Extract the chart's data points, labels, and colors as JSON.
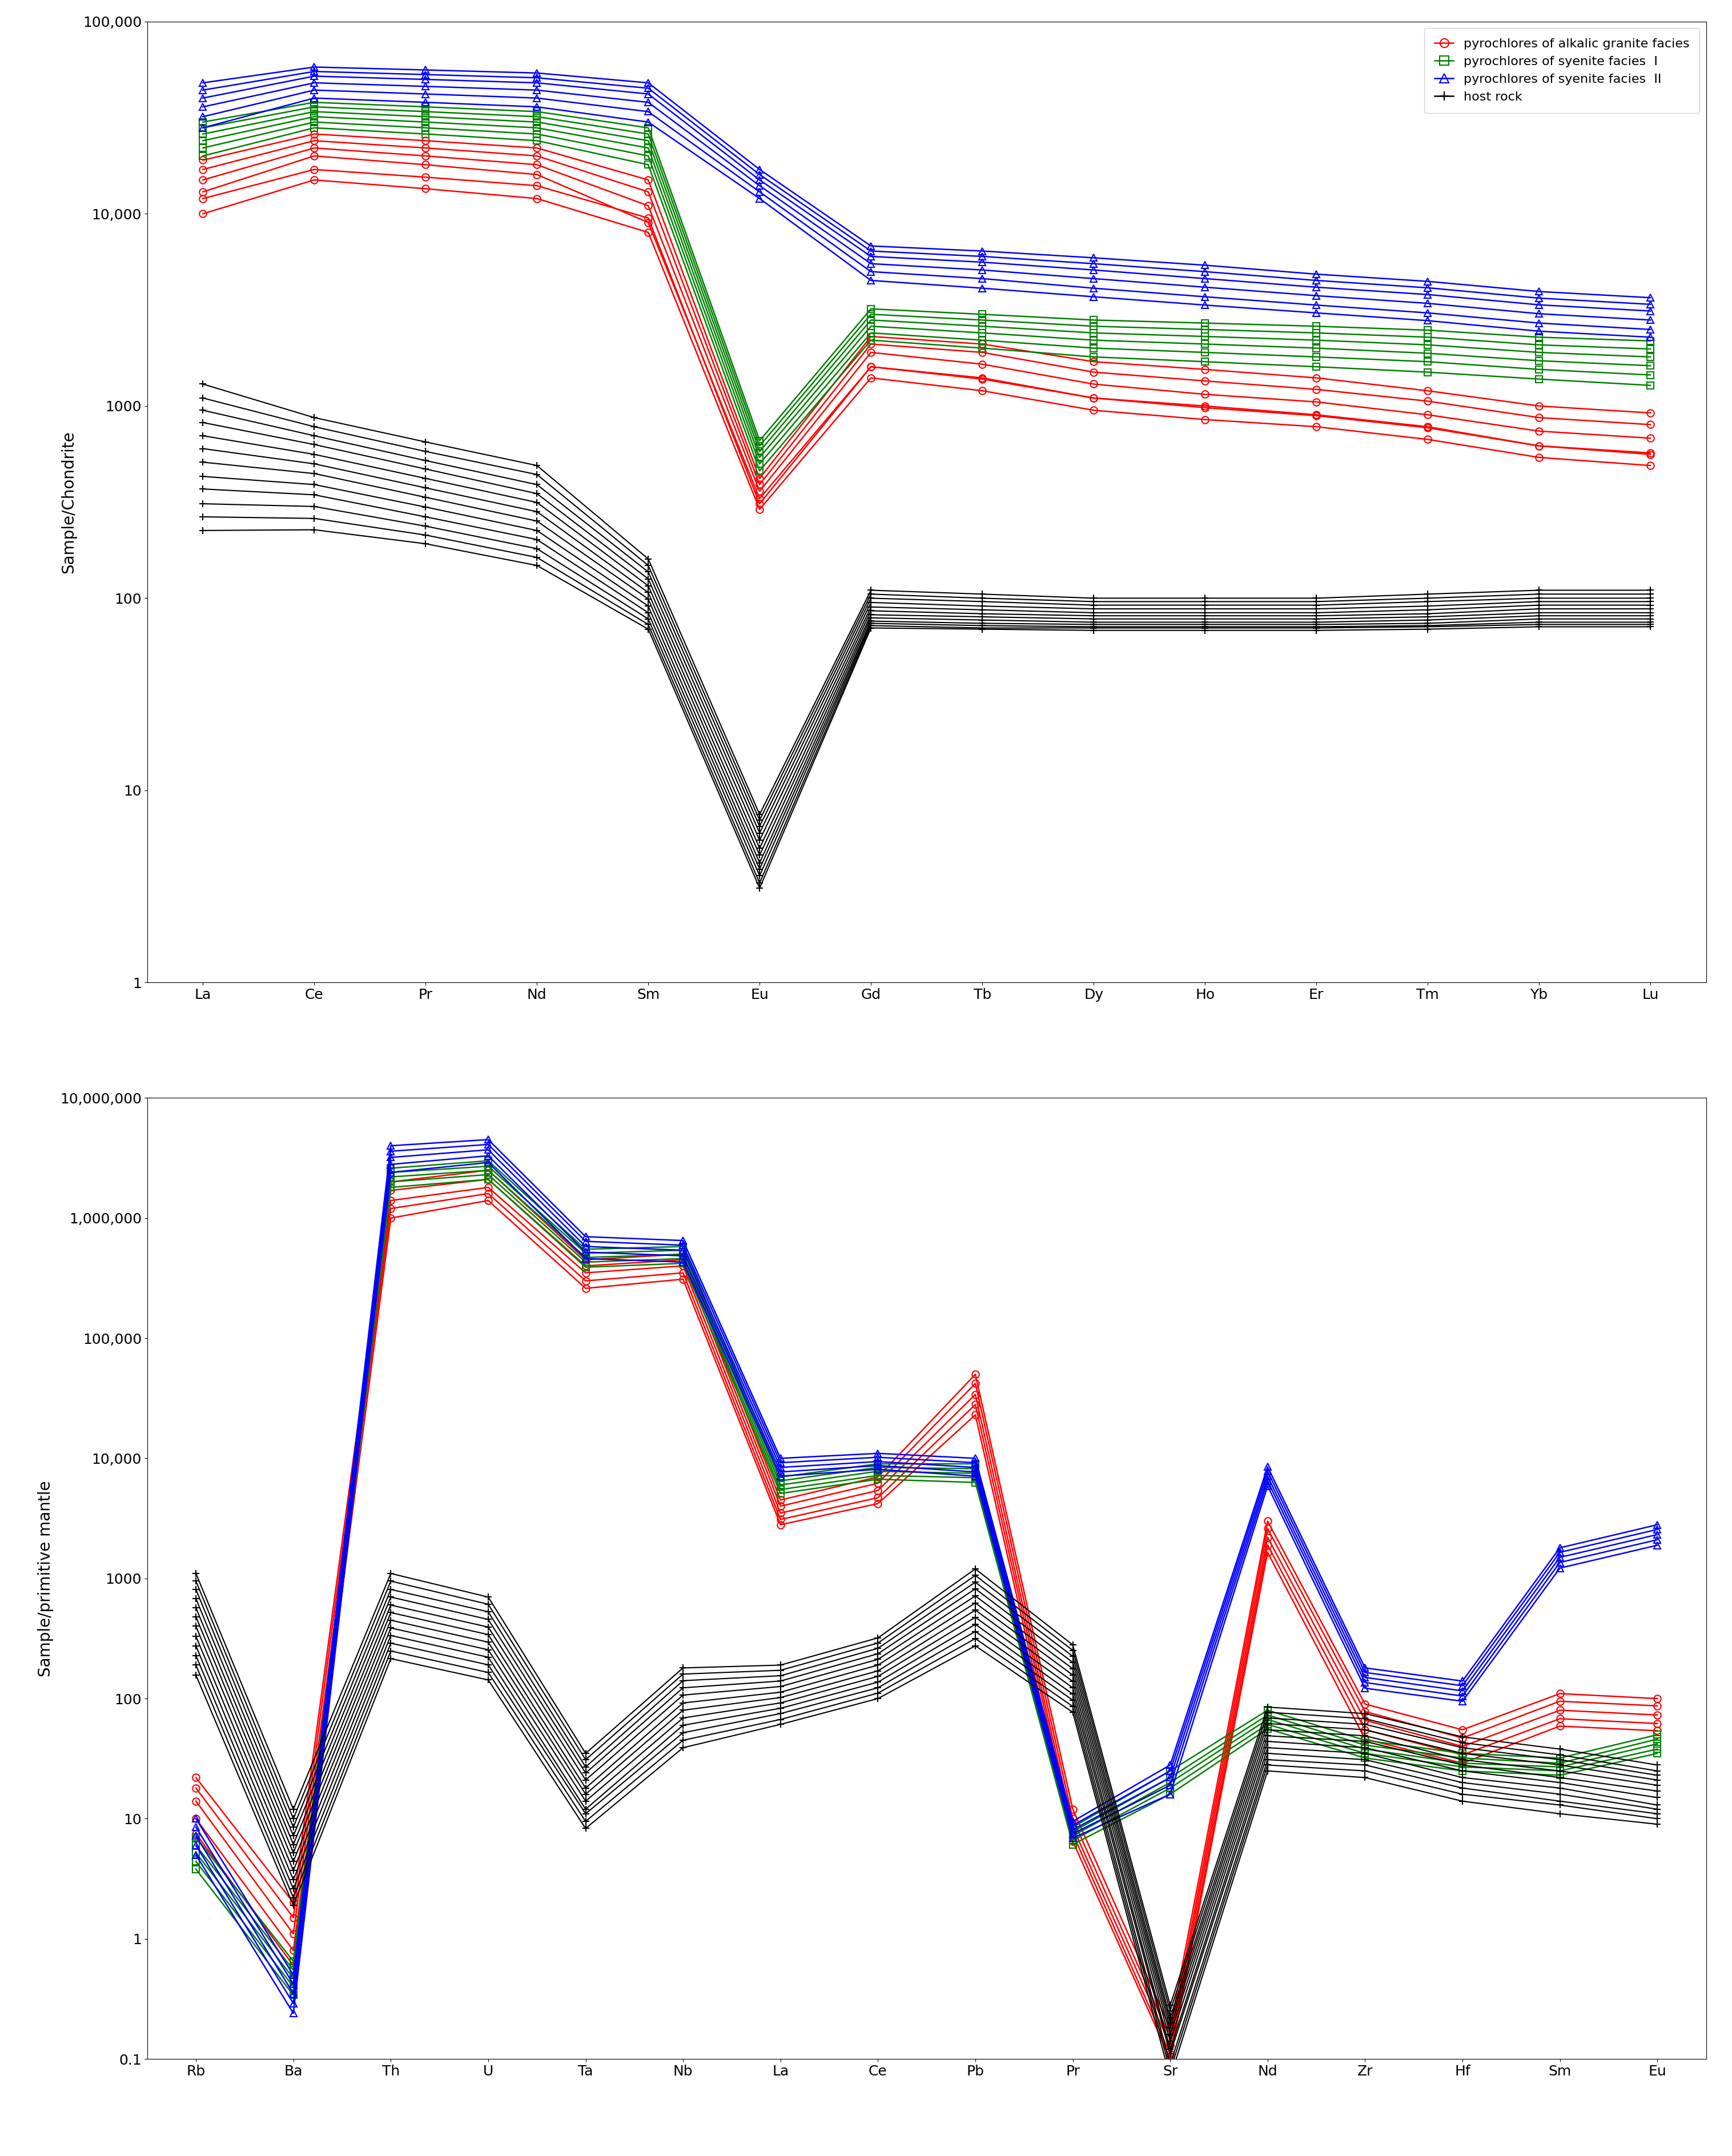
{
  "chart1": {
    "elements": [
      "La",
      "Ce",
      "Pr",
      "Nd",
      "Sm",
      "Eu",
      "Gd",
      "Tb",
      "Dy",
      "Ho",
      "Er",
      "Tm",
      "Yb",
      "Lu"
    ],
    "ylabel": "Sample/Chondrite",
    "ylim_min": 1,
    "ylim_max": 100000,
    "red_series": [
      [
        13000,
        20000,
        18000,
        16000,
        9000,
        330,
        1600,
        1400,
        1100,
        1000,
        900,
        780,
        620,
        560
      ],
      [
        15000,
        22000,
        20000,
        18000,
        11000,
        360,
        1900,
        1650,
        1300,
        1150,
        1050,
        900,
        740,
        680
      ],
      [
        17000,
        24000,
        22000,
        20000,
        13000,
        390,
        2100,
        1900,
        1500,
        1350,
        1220,
        1060,
        870,
        800
      ],
      [
        19000,
        26000,
        24000,
        22000,
        15000,
        420,
        2300,
        2100,
        1700,
        1550,
        1400,
        1200,
        1000,
        920
      ],
      [
        10000,
        15000,
        13500,
        12000,
        8000,
        290,
        1400,
        1200,
        950,
        850,
        780,
        670,
        540,
        490
      ],
      [
        12000,
        17000,
        15500,
        14000,
        9500,
        310,
        1600,
        1380,
        1100,
        980,
        890,
        770,
        620,
        570
      ]
    ],
    "green_series": [
      [
        22000,
        30000,
        28000,
        26000,
        20000,
        500,
        2400,
        2200,
        2000,
        1900,
        1800,
        1700,
        1550,
        1450
      ],
      [
        24000,
        32000,
        30000,
        28000,
        22000,
        540,
        2600,
        2400,
        2200,
        2100,
        2000,
        1880,
        1720,
        1620
      ],
      [
        26000,
        34000,
        32000,
        30000,
        24000,
        580,
        2800,
        2600,
        2400,
        2300,
        2200,
        2080,
        1900,
        1800
      ],
      [
        28000,
        36000,
        34000,
        32000,
        26000,
        620,
        3000,
        2800,
        2600,
        2500,
        2400,
        2280,
        2080,
        1980
      ],
      [
        20000,
        28000,
        26000,
        24000,
        18000,
        460,
        2200,
        2000,
        1800,
        1700,
        1600,
        1500,
        1380,
        1280
      ],
      [
        30000,
        38000,
        36000,
        34000,
        28000,
        660,
        3200,
        3000,
        2800,
        2700,
        2600,
        2480,
        2280,
        2180
      ]
    ],
    "blue_series": [
      [
        28000,
        40000,
        38000,
        36000,
        30000,
        12000,
        4500,
        4100,
        3700,
        3350,
        3050,
        2780,
        2450,
        2280
      ],
      [
        32000,
        44000,
        42000,
        40000,
        34000,
        13000,
        5000,
        4600,
        4100,
        3700,
        3350,
        3050,
        2700,
        2500
      ],
      [
        36000,
        48000,
        46000,
        44000,
        38000,
        14000,
        5500,
        5100,
        4600,
        4150,
        3750,
        3420,
        3020,
        2800
      ],
      [
        40000,
        52000,
        50000,
        48000,
        42000,
        15000,
        6000,
        5600,
        5100,
        4600,
        4150,
        3800,
        3360,
        3120
      ],
      [
        44000,
        55000,
        53000,
        51000,
        45000,
        16000,
        6400,
        6000,
        5500,
        5000,
        4500,
        4120,
        3640,
        3380
      ],
      [
        48000,
        58000,
        56000,
        54000,
        48000,
        17000,
        6800,
        6400,
        5900,
        5400,
        4850,
        4450,
        3940,
        3660
      ]
    ],
    "black_series": [
      [
        1300,
        870,
        650,
        490,
        160,
        7.5,
        110,
        105,
        100,
        100,
        100,
        105,
        110,
        110
      ],
      [
        1100,
        780,
        580,
        440,
        148,
        7.0,
        105,
        100,
        96,
        96,
        96,
        100,
        105,
        105
      ],
      [
        950,
        700,
        520,
        390,
        137,
        6.5,
        100,
        96,
        92,
        92,
        92,
        96,
        100,
        100
      ],
      [
        820,
        630,
        470,
        350,
        126,
        6.0,
        95,
        91,
        88,
        88,
        88,
        91,
        96,
        96
      ],
      [
        700,
        560,
        420,
        315,
        116,
        5.5,
        90,
        87,
        84,
        84,
        84,
        87,
        92,
        92
      ],
      [
        600,
        500,
        375,
        282,
        107,
        5.0,
        86,
        83,
        81,
        81,
        81,
        83,
        88,
        88
      ],
      [
        510,
        445,
        335,
        252,
        99,
        4.6,
        82,
        80,
        78,
        78,
        78,
        80,
        84,
        84
      ],
      [
        430,
        390,
        298,
        225,
        91,
        4.2,
        79,
        77,
        75,
        75,
        75,
        77,
        81,
        81
      ],
      [
        370,
        345,
        265,
        202,
        84,
        3.9,
        76,
        74,
        73,
        73,
        73,
        74,
        78,
        78
      ],
      [
        310,
        300,
        237,
        181,
        78,
        3.6,
        74,
        72,
        71,
        71,
        71,
        72,
        75,
        75
      ],
      [
        265,
        260,
        213,
        163,
        73,
        3.3,
        72,
        70,
        70,
        70,
        70,
        71,
        73,
        73
      ],
      [
        225,
        227,
        192,
        148,
        69,
        3.1,
        70,
        69,
        68,
        68,
        68,
        69,
        71,
        71
      ]
    ]
  },
  "chart2": {
    "elements": [
      "Rb",
      "Ba",
      "Th",
      "U",
      "Ta",
      "Nb",
      "La",
      "Ce",
      "Pb",
      "Pr",
      "Sr",
      "Nd",
      "Zr",
      "Hf",
      "Sm",
      "Eu"
    ],
    "ylabel": "Sample/primitive mantle",
    "ylim_min": 0.1,
    "ylim_max": 10000000,
    "red_series": [
      [
        22,
        2.0,
        2000000,
        2500000,
        450000,
        500000,
        4500,
        7000,
        50000,
        12,
        0.18,
        3000,
        90,
        55,
        110,
        100
      ],
      [
        18,
        1.5,
        1700000,
        2100000,
        400000,
        450000,
        4000,
        6200,
        42000,
        10,
        0.15,
        2600,
        78,
        47,
        95,
        87
      ],
      [
        14,
        1.1,
        1400000,
        1800000,
        350000,
        400000,
        3500,
        5400,
        34000,
        8.5,
        0.13,
        2200,
        66,
        40,
        80,
        73
      ],
      [
        10,
        0.8,
        1200000,
        1600000,
        300000,
        350000,
        3100,
        4700,
        28000,
        7.5,
        0.11,
        1900,
        55,
        34,
        68,
        62
      ],
      [
        7.5,
        0.6,
        1000000,
        1400000,
        260000,
        310000,
        2800,
        4200,
        23000,
        6.5,
        0.1,
        1650,
        46,
        29,
        59,
        54
      ]
    ],
    "green_series": [
      [
        7.0,
        0.65,
        2600000,
        3000000,
        550000,
        580000,
        7000,
        9000,
        9000,
        8.5,
        25,
        80,
        45,
        35,
        32,
        50
      ],
      [
        6.0,
        0.55,
        2400000,
        2700000,
        510000,
        540000,
        6500,
        8400,
        8200,
        7.8,
        22,
        73,
        41,
        32,
        29,
        46
      ],
      [
        5.2,
        0.47,
        2200000,
        2500000,
        470000,
        500000,
        6000,
        7800,
        7500,
        7.2,
        20,
        67,
        38,
        29,
        27,
        42
      ],
      [
        4.4,
        0.4,
        2000000,
        2300000,
        430000,
        460000,
        5500,
        7200,
        6900,
        6.6,
        18,
        61,
        35,
        27,
        25,
        38
      ],
      [
        3.8,
        0.34,
        1800000,
        2100000,
        390000,
        420000,
        5100,
        6700,
        6300,
        6.1,
        16,
        56,
        32,
        25,
        23,
        35
      ]
    ],
    "blue_series": [
      [
        10,
        0.5,
        4000000,
        4500000,
        700000,
        650000,
        10000,
        11000,
        10000,
        9.5,
        28,
        8500,
        180,
        140,
        1800,
        2800
      ],
      [
        8.5,
        0.42,
        3600000,
        4100000,
        640000,
        595000,
        9200,
        10200,
        9200,
        8.8,
        25,
        7800,
        165,
        128,
        1650,
        2560
      ],
      [
        7.2,
        0.35,
        3200000,
        3700000,
        580000,
        540000,
        8400,
        9400,
        8400,
        8.1,
        22,
        7100,
        150,
        116,
        1500,
        2320
      ],
      [
        6.0,
        0.29,
        2800000,
        3300000,
        520000,
        485000,
        7700,
        8700,
        7700,
        7.5,
        19,
        6500,
        136,
        105,
        1360,
        2100
      ],
      [
        5.0,
        0.24,
        2400000,
        2900000,
        460000,
        430000,
        7100,
        8100,
        7100,
        6.9,
        16,
        5900,
        122,
        95,
        1220,
        1890
      ]
    ],
    "black_series": [
      [
        1100,
        12,
        1100,
        700,
        35,
        180,
        190,
        320,
        1200,
        280,
        0.28,
        85,
        75,
        48,
        38,
        28
      ],
      [
        950,
        10,
        950,
        610,
        31,
        160,
        172,
        290,
        1060,
        252,
        0.25,
        77,
        68,
        43,
        34,
        25
      ],
      [
        810,
        8.5,
        810,
        528,
        27,
        141,
        155,
        262,
        930,
        225,
        0.22,
        69,
        61,
        39,
        31,
        23
      ],
      [
        680,
        7.2,
        700,
        456,
        24,
        123,
        140,
        236,
        820,
        200,
        0.2,
        62,
        55,
        35,
        28,
        21
      ],
      [
        570,
        6.1,
        600,
        394,
        21,
        107,
        126,
        212,
        715,
        177,
        0.18,
        55,
        49,
        31,
        25,
        19
      ],
      [
        480,
        5.2,
        520,
        341,
        18,
        92,
        113,
        190,
        625,
        157,
        0.16,
        49,
        44,
        28,
        22,
        17
      ],
      [
        400,
        4.4,
        449,
        295,
        16,
        80,
        102,
        170,
        545,
        139,
        0.14,
        44,
        39,
        25,
        20,
        15
      ],
      [
        330,
        3.7,
        387,
        255,
        14,
        69,
        92,
        153,
        475,
        123,
        0.12,
        39,
        35,
        22,
        18,
        13
      ],
      [
        275,
        3.1,
        335,
        221,
        12,
        60,
        83,
        137,
        415,
        109,
        0.11,
        35,
        31,
        20,
        16,
        12
      ],
      [
        228,
        2.6,
        289,
        191,
        11,
        52,
        75,
        123,
        362,
        97,
        0.09,
        31,
        28,
        18,
        14,
        11
      ],
      [
        190,
        2.2,
        249,
        165,
        9.5,
        45,
        67,
        111,
        316,
        86,
        0.08,
        28,
        25,
        16,
        13,
        10
      ],
      [
        157,
        1.9,
        215,
        143,
        8.3,
        39,
        61,
        100,
        275,
        77,
        0.07,
        25,
        22,
        14,
        11,
        9
      ]
    ]
  }
}
